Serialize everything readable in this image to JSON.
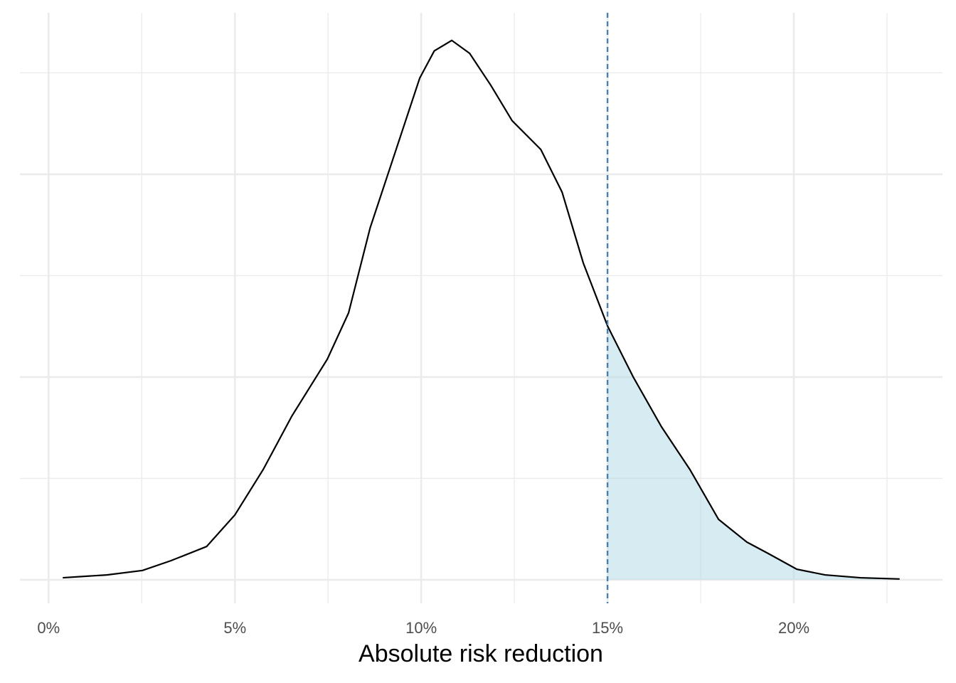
{
  "chart_data": {
    "type": "density",
    "x_label": "Absolute risk reduction",
    "x": [
      0.0038,
      0.0156,
      0.0252,
      0.0328,
      0.0424,
      0.05,
      0.0576,
      0.0653,
      0.0748,
      0.0805,
      0.0863,
      0.092,
      0.0996,
      0.1035,
      0.1082,
      0.113,
      0.1187,
      0.1244,
      0.1321,
      0.1378,
      0.1435,
      0.15,
      0.1569,
      0.1645,
      0.1721,
      0.1798,
      0.1874,
      0.1931,
      0.2008,
      0.2084,
      0.2179,
      0.2284
    ],
    "values": [
      0.05,
      0.12,
      0.23,
      0.47,
      0.82,
      1.6,
      2.72,
      4.04,
      5.44,
      6.58,
      8.68,
      10.26,
      12.37,
      13.04,
      13.3,
      12.98,
      12.19,
      11.32,
      10.61,
      9.56,
      7.81,
      6.26,
      5.0,
      3.77,
      2.72,
      1.49,
      0.93,
      0.65,
      0.26,
      0.12,
      0.05,
      0.02
    ],
    "color": "#000000",
    "threshold": 0.15,
    "threshold_color": "#4a7fb0",
    "shade_color": "#add8e6",
    "xlim": [
      -0.0077,
      0.2399
    ],
    "ylim": [
      -0.58,
      13.98
    ],
    "xticks": [
      {
        "value": 0,
        "label": "0%"
      },
      {
        "value": 0.05,
        "label": "5%"
      },
      {
        "value": 0.1,
        "label": "10%"
      },
      {
        "value": 0.15,
        "label": "15%"
      },
      {
        "value": 0.2,
        "label": "20%"
      }
    ],
    "x_minor_ticks": [
      0.025,
      0.075,
      0.125,
      0.175,
      0.225
    ],
    "yticks": [
      0,
      5,
      10
    ],
    "y_minor_ticks": [
      2.5,
      7.5,
      12.5
    ],
    "grid": true
  }
}
